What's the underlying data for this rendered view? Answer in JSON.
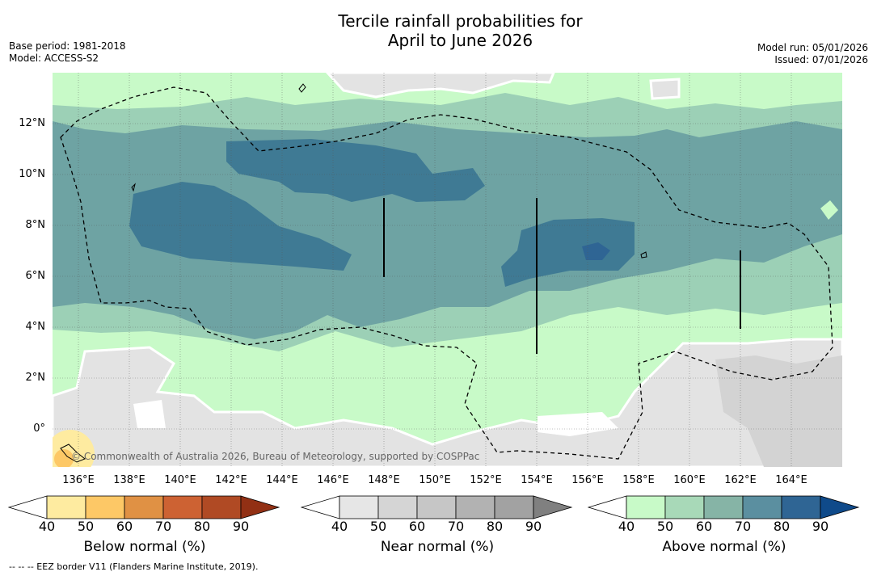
{
  "title": {
    "line1": "Tercile rainfall probabilities for",
    "line2": "April to June 2026"
  },
  "meta": {
    "base_period": "Base period: 1981-2018",
    "model": "Model: ACCESS-S2",
    "model_run": "Model run: 05/01/2026",
    "issued": "Issued: 07/01/2026"
  },
  "map": {
    "lat_labels": [
      "12°N",
      "10°N",
      "8°N",
      "6°N",
      "4°N",
      "2°N",
      "0°"
    ],
    "lon_labels": [
      "136°E",
      "138°E",
      "140°E",
      "142°E",
      "144°E",
      "146°E",
      "148°E",
      "150°E",
      "152°E",
      "154°E",
      "156°E",
      "158°E",
      "160°E",
      "162°E",
      "164°E"
    ],
    "copyright": "© Commonwealth of Australia 2026, Bureau of Meteorology, supported by COSPPac"
  },
  "colorbars": [
    {
      "title": "Below normal (%)",
      "ticks": [
        "40",
        "50",
        "60",
        "70",
        "80",
        "90"
      ],
      "colors": [
        "#ffffff",
        "#feeba0",
        "#fdc866",
        "#e09144",
        "#cd6233",
        "#b04a24",
        "#923014"
      ]
    },
    {
      "title": "Near normal (%)",
      "ticks": [
        "40",
        "50",
        "60",
        "70",
        "80",
        "90"
      ],
      "colors": [
        "#ffffff",
        "#e6e6e6",
        "#d5d5d5",
        "#c6c6c6",
        "#b2b2b2",
        "#a2a2a2",
        "#808080"
      ]
    },
    {
      "title": "Above normal (%)",
      "ticks": [
        "40",
        "50",
        "60",
        "70",
        "80",
        "90"
      ],
      "colors": [
        "#ffffff",
        "#c8fac8",
        "#a8d9b8",
        "#86b4a6",
        "#5b8fa0",
        "#2f6594",
        "#0f4a8a"
      ]
    }
  ],
  "footnote": "-- -- -- EEZ border V11 (Flanders Marine Institute, 2019)."
}
